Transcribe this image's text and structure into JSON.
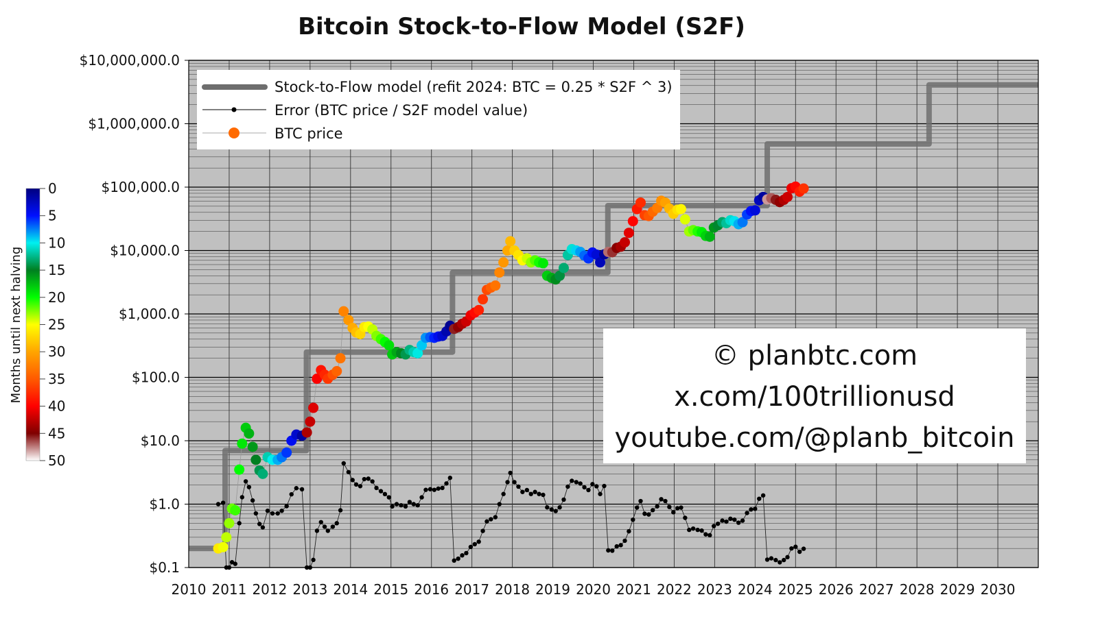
{
  "chart_data": {
    "type": "scatter",
    "title": "Bitcoin Stock-to-Flow Model (S2F)",
    "xlabel": "",
    "ylabel": "",
    "yscale": "log",
    "xlim": [
      2010,
      2031
    ],
    "ylim": [
      0.1,
      10000000
    ],
    "grid": true,
    "x_ticks": [
      "2010",
      "2011",
      "2012",
      "2013",
      "2014",
      "2015",
      "2016",
      "2017",
      "2018",
      "2019",
      "2020",
      "2021",
      "2022",
      "2023",
      "2024",
      "2025",
      "2026",
      "2027",
      "2028",
      "2029",
      "2030"
    ],
    "y_ticks": [
      "$10,000,000.0",
      "$1,000,000.0",
      "$100,000.0",
      "$10,000.0",
      "$1,000.0",
      "$100.0",
      "$10.0",
      "$1.0",
      "$0.1"
    ],
    "legend_position": "top-left",
    "legend": [
      {
        "name": "Stock-to-Flow model (refit 2024:  BTC = 0.25 * S2F ^ 3)",
        "color": "#6e6e6e"
      },
      {
        "name": "Error (BTC price / S2F model value)",
        "color": "#000000"
      },
      {
        "name": "BTC price",
        "color": "#ff6a00"
      }
    ],
    "colorbar": {
      "label": "Months until next halving",
      "ticks": [
        "0",
        "5",
        "10",
        "15",
        "20",
        "25",
        "30",
        "35",
        "40",
        "45",
        "50"
      ],
      "range": [
        0,
        50
      ]
    },
    "halvings": [
      2012.91,
      2016.52,
      2020.36,
      2024.3,
      2028.3
    ],
    "model_steps": [
      {
        "from": 2010.0,
        "to": 2010.9,
        "value": 0.2
      },
      {
        "from": 2010.9,
        "to": 2012.91,
        "value": 7
      },
      {
        "from": 2012.91,
        "to": 2016.52,
        "value": 250
      },
      {
        "from": 2016.52,
        "to": 2020.36,
        "value": 4500
      },
      {
        "from": 2020.36,
        "to": 2024.3,
        "value": 51000
      },
      {
        "from": 2024.3,
        "to": 2028.3,
        "value": 480000
      },
      {
        "from": 2028.3,
        "to": 2031.0,
        "value": 4100000
      }
    ],
    "btc_price": [
      [
        2010.73,
        0.2
      ],
      [
        2010.85,
        0.21
      ],
      [
        2010.93,
        0.3
      ],
      [
        2011.0,
        0.5
      ],
      [
        2011.07,
        0.85
      ],
      [
        2011.15,
        0.8
      ],
      [
        2011.25,
        3.5
      ],
      [
        2011.32,
        9
      ],
      [
        2011.41,
        16
      ],
      [
        2011.49,
        13
      ],
      [
        2011.58,
        8
      ],
      [
        2011.66,
        5
      ],
      [
        2011.75,
        3.4
      ],
      [
        2011.83,
        3
      ],
      [
        2011.95,
        5.5
      ],
      [
        2012.07,
        5
      ],
      [
        2012.2,
        5
      ],
      [
        2012.3,
        5.5
      ],
      [
        2012.42,
        6.5
      ],
      [
        2012.54,
        10
      ],
      [
        2012.66,
        12.5
      ],
      [
        2012.8,
        12
      ],
      [
        2012.92,
        13.5
      ],
      [
        2013.0,
        20
      ],
      [
        2013.08,
        33
      ],
      [
        2013.17,
        95
      ],
      [
        2013.27,
        130
      ],
      [
        2013.36,
        110
      ],
      [
        2013.44,
        95
      ],
      [
        2013.56,
        110
      ],
      [
        2013.66,
        125
      ],
      [
        2013.75,
        200
      ],
      [
        2013.83,
        1100
      ],
      [
        2013.95,
        800
      ],
      [
        2014.05,
        600
      ],
      [
        2014.14,
        510
      ],
      [
        2014.24,
        480
      ],
      [
        2014.34,
        620
      ],
      [
        2014.44,
        630
      ],
      [
        2014.54,
        570
      ],
      [
        2014.64,
        450
      ],
      [
        2014.75,
        400
      ],
      [
        2014.85,
        360
      ],
      [
        2014.95,
        320
      ],
      [
        2015.03,
        230
      ],
      [
        2015.14,
        250
      ],
      [
        2015.25,
        240
      ],
      [
        2015.36,
        230
      ],
      [
        2015.46,
        270
      ],
      [
        2015.56,
        250
      ],
      [
        2015.66,
        240
      ],
      [
        2015.76,
        320
      ],
      [
        2015.86,
        420
      ],
      [
        2015.97,
        430
      ],
      [
        2016.07,
        420
      ],
      [
        2016.17,
        440
      ],
      [
        2016.27,
        450
      ],
      [
        2016.37,
        530
      ],
      [
        2016.46,
        650
      ],
      [
        2016.56,
        580
      ],
      [
        2016.66,
        620
      ],
      [
        2016.76,
        700
      ],
      [
        2016.86,
        760
      ],
      [
        2016.97,
        950
      ],
      [
        2017.07,
        1050
      ],
      [
        2017.17,
        1150
      ],
      [
        2017.27,
        1700
      ],
      [
        2017.37,
        2400
      ],
      [
        2017.47,
        2600
      ],
      [
        2017.58,
        2800
      ],
      [
        2017.68,
        4500
      ],
      [
        2017.78,
        6500
      ],
      [
        2017.88,
        10000
      ],
      [
        2017.95,
        14000
      ],
      [
        2018.05,
        10000
      ],
      [
        2018.15,
        8500
      ],
      [
        2018.25,
        7000
      ],
      [
        2018.36,
        7500
      ],
      [
        2018.46,
        6500
      ],
      [
        2018.56,
        7000
      ],
      [
        2018.66,
        6500
      ],
      [
        2018.76,
        6300
      ],
      [
        2018.86,
        4000
      ],
      [
        2018.97,
        3700
      ],
      [
        2019.07,
        3500
      ],
      [
        2019.17,
        4000
      ],
      [
        2019.27,
        5300
      ],
      [
        2019.37,
        8500
      ],
      [
        2019.47,
        10500
      ],
      [
        2019.58,
        10000
      ],
      [
        2019.68,
        9500
      ],
      [
        2019.78,
        8300
      ],
      [
        2019.88,
        7500
      ],
      [
        2019.98,
        9300
      ],
      [
        2020.08,
        8600
      ],
      [
        2020.17,
        6500
      ],
      [
        2020.27,
        8700
      ],
      [
        2020.37,
        9500
      ],
      [
        2020.47,
        9400
      ],
      [
        2020.58,
        11000
      ],
      [
        2020.68,
        11500
      ],
      [
        2020.78,
        13500
      ],
      [
        2020.88,
        19000
      ],
      [
        2020.98,
        29000
      ],
      [
        2021.08,
        45000
      ],
      [
        2021.17,
        57000
      ],
      [
        2021.27,
        36000
      ],
      [
        2021.37,
        35000
      ],
      [
        2021.47,
        41000
      ],
      [
        2021.58,
        47000
      ],
      [
        2021.68,
        61000
      ],
      [
        2021.78,
        57000
      ],
      [
        2021.88,
        46000
      ],
      [
        2021.98,
        38000
      ],
      [
        2022.08,
        44000
      ],
      [
        2022.17,
        45000
      ],
      [
        2022.27,
        31000
      ],
      [
        2022.37,
        20000
      ],
      [
        2022.47,
        21000
      ],
      [
        2022.58,
        20000
      ],
      [
        2022.68,
        19500
      ],
      [
        2022.78,
        17000
      ],
      [
        2022.88,
        16500
      ],
      [
        2022.98,
        23000
      ],
      [
        2023.08,
        25000
      ],
      [
        2023.19,
        28000
      ],
      [
        2023.29,
        27000
      ],
      [
        2023.39,
        30000
      ],
      [
        2023.49,
        29000
      ],
      [
        2023.59,
        26000
      ],
      [
        2023.69,
        28000
      ],
      [
        2023.8,
        37000
      ],
      [
        2023.9,
        42000
      ],
      [
        2024.0,
        43000
      ],
      [
        2024.1,
        62000
      ],
      [
        2024.2,
        70000
      ],
      [
        2024.3,
        64000
      ],
      [
        2024.4,
        67000
      ],
      [
        2024.51,
        63000
      ],
      [
        2024.61,
        58000
      ],
      [
        2024.71,
        63000
      ],
      [
        2024.8,
        70000
      ],
      [
        2024.9,
        96000
      ],
      [
        2025.0,
        102000
      ],
      [
        2025.1,
        85000
      ],
      [
        2025.2,
        95000
      ]
    ]
  },
  "watermark": {
    "line1": "© planbtc.com",
    "line2": "x.com/100trillionusd",
    "line3": "youtube.com/@planb_bitcoin"
  }
}
